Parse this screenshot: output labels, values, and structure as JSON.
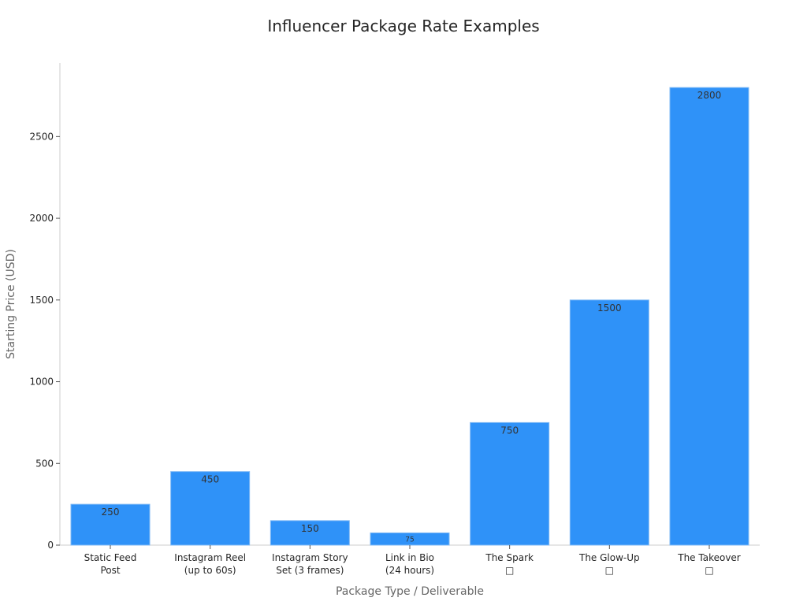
{
  "chart_data": {
    "type": "bar",
    "title": "Influencer Package Rate Examples",
    "xlabel": "Package Type / Deliverable",
    "ylabel": "Starting Price (USD)",
    "categories": [
      [
        "Static Feed",
        "Post"
      ],
      [
        "Instagram Reel",
        "(up to 60s)"
      ],
      [
        "Instagram Story",
        "Set (3 frames)"
      ],
      [
        "Link in Bio",
        "(24 hours)"
      ],
      [
        "The Spark",
        "□"
      ],
      [
        "The Glow-Up",
        "□"
      ],
      [
        "The Takeover",
        "□"
      ]
    ],
    "values": [
      250,
      450,
      150,
      75,
      750,
      1500,
      2800
    ],
    "data_labels": [
      "250",
      "450",
      "150",
      "75",
      "750",
      "1500",
      "2800"
    ],
    "ylim": [
      0,
      2950
    ],
    "yticks": [
      0,
      500,
      1000,
      1500,
      2000,
      2500
    ],
    "bar_color": "#2f92f8",
    "grid": false,
    "legend": "none"
  }
}
